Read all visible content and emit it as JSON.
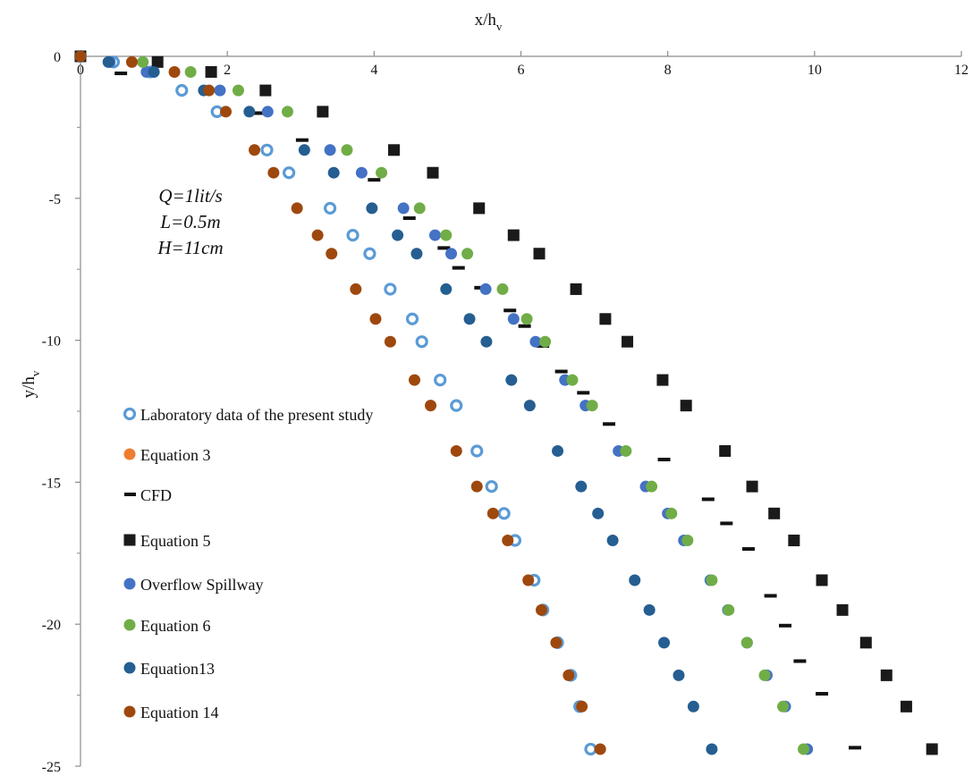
{
  "chart_data": {
    "type": "scatter",
    "xlabel": "x/h",
    "xlabel_sub": "v",
    "ylabel": "y/h",
    "ylabel_sub": "v",
    "xlim": [
      0,
      12
    ],
    "ylim": [
      -25,
      0
    ],
    "x_ticks": [
      "0",
      "2",
      "4",
      "6",
      "8",
      "10",
      "12"
    ],
    "y_ticks": [
      "0",
      "-5",
      "-10",
      "-15",
      "-20",
      "-25"
    ],
    "x_axis_position": "top",
    "grid": false,
    "legend_position": "left",
    "annotations": [
      "Q=1lit/s",
      "L=0.5m",
      "H=11cm"
    ],
    "series": [
      {
        "name": "Laboratory data of the present study",
        "marker": "hollow-circle",
        "color": "#5b9bd5",
        "points": [
          [
            0,
            0
          ],
          [
            0.45,
            -0.2
          ],
          [
            0.95,
            -0.55
          ],
          [
            1.38,
            -1.2
          ],
          [
            1.86,
            -1.95
          ],
          [
            2.54,
            -3.3
          ],
          [
            2.84,
            -4.1
          ],
          [
            3.4,
            -5.35
          ],
          [
            3.71,
            -6.3
          ],
          [
            3.94,
            -6.95
          ],
          [
            4.22,
            -8.2
          ],
          [
            4.52,
            -9.25
          ],
          [
            4.65,
            -10.05
          ],
          [
            4.9,
            -11.4
          ],
          [
            5.12,
            -12.3
          ],
          [
            5.4,
            -13.9
          ],
          [
            5.6,
            -15.15
          ],
          [
            5.77,
            -16.1
          ],
          [
            5.92,
            -17.05
          ],
          [
            6.18,
            -18.45
          ],
          [
            6.3,
            -19.5
          ],
          [
            6.5,
            -20.65
          ],
          [
            6.68,
            -21.8
          ],
          [
            6.8,
            -22.9
          ],
          [
            6.95,
            -24.4
          ]
        ]
      },
      {
        "name": "Equation 3",
        "marker": "filled-circle",
        "color": "#ed7d31",
        "points": []
      },
      {
        "name": "CFD",
        "marker": "dash",
        "color": "#111111",
        "points": [
          [
            0.55,
            -0.6
          ],
          [
            2.45,
            -2.0
          ],
          [
            3.02,
            -2.95
          ],
          [
            4.0,
            -4.35
          ],
          [
            4.48,
            -5.7
          ],
          [
            4.95,
            -6.75
          ],
          [
            5.15,
            -7.45
          ],
          [
            5.45,
            -8.15
          ],
          [
            5.85,
            -8.95
          ],
          [
            6.05,
            -9.5
          ],
          [
            6.3,
            -10.2
          ],
          [
            6.55,
            -11.1
          ],
          [
            6.85,
            -11.85
          ],
          [
            7.2,
            -12.95
          ],
          [
            7.95,
            -14.2
          ],
          [
            8.55,
            -15.6
          ],
          [
            8.8,
            -16.45
          ],
          [
            9.1,
            -17.35
          ],
          [
            9.4,
            -19.0
          ],
          [
            9.6,
            -20.05
          ],
          [
            9.8,
            -21.3
          ],
          [
            10.1,
            -22.45
          ],
          [
            10.55,
            -24.35
          ]
        ]
      },
      {
        "name": "Equation 5",
        "marker": "filled-square",
        "color": "#1a1a1a",
        "points": [
          [
            0,
            0
          ],
          [
            1.05,
            -0.2
          ],
          [
            1.78,
            -0.55
          ],
          [
            2.52,
            -1.2
          ],
          [
            3.3,
            -1.95
          ],
          [
            4.27,
            -3.3
          ],
          [
            4.8,
            -4.1
          ],
          [
            5.43,
            -5.35
          ],
          [
            5.9,
            -6.3
          ],
          [
            6.25,
            -6.95
          ],
          [
            6.75,
            -8.2
          ],
          [
            7.15,
            -9.25
          ],
          [
            7.45,
            -10.05
          ],
          [
            7.93,
            -11.4
          ],
          [
            8.25,
            -12.3
          ],
          [
            8.78,
            -13.9
          ],
          [
            9.15,
            -15.15
          ],
          [
            9.45,
            -16.1
          ],
          [
            9.72,
            -17.05
          ],
          [
            10.1,
            -18.45
          ],
          [
            10.38,
            -19.5
          ],
          [
            10.7,
            -20.65
          ],
          [
            10.98,
            -21.8
          ],
          [
            11.25,
            -22.9
          ],
          [
            11.6,
            -24.4
          ]
        ]
      },
      {
        "name": "Overflow Spillway",
        "marker": "filled-circle",
        "color": "#4472c4",
        "points": [
          [
            0,
            0
          ],
          [
            0.4,
            -0.2
          ],
          [
            0.9,
            -0.55
          ],
          [
            1.9,
            -1.2
          ],
          [
            2.55,
            -1.95
          ],
          [
            3.4,
            -3.3
          ],
          [
            3.83,
            -4.1
          ],
          [
            4.4,
            -5.35
          ],
          [
            4.83,
            -6.3
          ],
          [
            5.05,
            -6.95
          ],
          [
            5.52,
            -8.2
          ],
          [
            5.9,
            -9.25
          ],
          [
            6.2,
            -10.05
          ],
          [
            6.6,
            -11.4
          ],
          [
            6.88,
            -12.3
          ],
          [
            7.33,
            -13.9
          ],
          [
            7.7,
            -15.15
          ],
          [
            8.0,
            -16.1
          ],
          [
            8.22,
            -17.05
          ],
          [
            8.58,
            -18.45
          ],
          [
            8.82,
            -19.5
          ],
          [
            9.08,
            -20.65
          ],
          [
            9.35,
            -21.8
          ],
          [
            9.6,
            -22.9
          ],
          [
            9.9,
            -24.4
          ]
        ]
      },
      {
        "name": "Equation 6",
        "marker": "filled-circle",
        "color": "#70ad47",
        "points": [
          [
            0,
            0
          ],
          [
            0.85,
            -0.2
          ],
          [
            1.5,
            -0.55
          ],
          [
            2.15,
            -1.2
          ],
          [
            2.82,
            -1.95
          ],
          [
            3.63,
            -3.3
          ],
          [
            4.1,
            -4.1
          ],
          [
            4.62,
            -5.35
          ],
          [
            4.98,
            -6.3
          ],
          [
            5.27,
            -6.95
          ],
          [
            5.75,
            -8.2
          ],
          [
            6.08,
            -9.25
          ],
          [
            6.33,
            -10.05
          ],
          [
            6.7,
            -11.4
          ],
          [
            6.97,
            -12.3
          ],
          [
            7.43,
            -13.9
          ],
          [
            7.78,
            -15.15
          ],
          [
            8.05,
            -16.1
          ],
          [
            8.27,
            -17.05
          ],
          [
            8.6,
            -18.45
          ],
          [
            8.83,
            -19.5
          ],
          [
            9.08,
            -20.65
          ],
          [
            9.32,
            -21.8
          ],
          [
            9.57,
            -22.9
          ],
          [
            9.85,
            -24.4
          ]
        ]
      },
      {
        "name": "Equation13",
        "marker": "filled-circle",
        "color": "#255e91",
        "points": [
          [
            0,
            0
          ],
          [
            0.38,
            -0.2
          ],
          [
            1.0,
            -0.55
          ],
          [
            1.68,
            -1.2
          ],
          [
            2.3,
            -1.95
          ],
          [
            3.05,
            -3.3
          ],
          [
            3.45,
            -4.1
          ],
          [
            3.97,
            -5.35
          ],
          [
            4.32,
            -6.3
          ],
          [
            4.58,
            -6.95
          ],
          [
            4.98,
            -8.2
          ],
          [
            5.3,
            -9.25
          ],
          [
            5.53,
            -10.05
          ],
          [
            5.87,
            -11.4
          ],
          [
            6.12,
            -12.3
          ],
          [
            6.5,
            -13.9
          ],
          [
            6.82,
            -15.15
          ],
          [
            7.05,
            -16.1
          ],
          [
            7.25,
            -17.05
          ],
          [
            7.55,
            -18.45
          ],
          [
            7.75,
            -19.5
          ],
          [
            7.95,
            -20.65
          ],
          [
            8.15,
            -21.8
          ],
          [
            8.35,
            -22.9
          ],
          [
            8.6,
            -24.4
          ]
        ]
      },
      {
        "name": "Equation 14",
        "marker": "filled-circle",
        "color": "#9e480e",
        "points": [
          [
            0,
            0
          ],
          [
            0.7,
            -0.2
          ],
          [
            1.28,
            -0.55
          ],
          [
            1.75,
            -1.2
          ],
          [
            1.98,
            -1.95
          ],
          [
            2.37,
            -3.3
          ],
          [
            2.63,
            -4.1
          ],
          [
            2.95,
            -5.35
          ],
          [
            3.23,
            -6.3
          ],
          [
            3.42,
            -6.95
          ],
          [
            3.75,
            -8.2
          ],
          [
            4.02,
            -9.25
          ],
          [
            4.22,
            -10.05
          ],
          [
            4.55,
            -11.4
          ],
          [
            4.77,
            -12.3
          ],
          [
            5.12,
            -13.9
          ],
          [
            5.4,
            -15.15
          ],
          [
            5.62,
            -16.1
          ],
          [
            5.82,
            -17.05
          ],
          [
            6.1,
            -18.45
          ],
          [
            6.28,
            -19.5
          ],
          [
            6.48,
            -20.65
          ],
          [
            6.65,
            -21.8
          ],
          [
            6.83,
            -22.9
          ],
          [
            7.08,
            -24.4
          ]
        ]
      }
    ]
  }
}
